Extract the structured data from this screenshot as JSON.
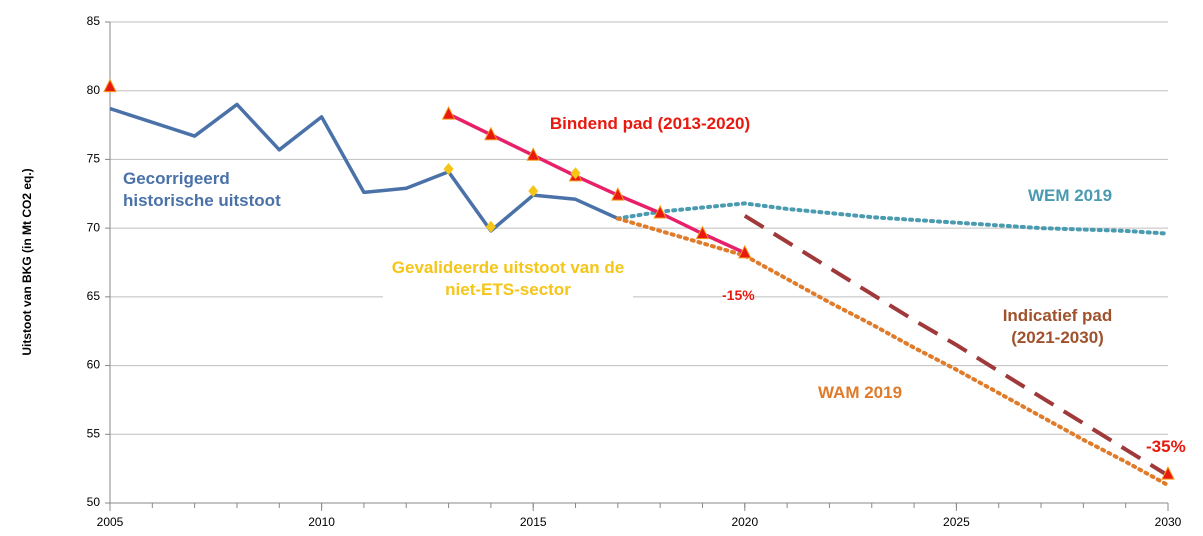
{
  "chart_data": {
    "type": "line",
    "y_label": "Uitstoot van BKG (in Mt CO2 eq.)",
    "x": [
      2005,
      2006,
      2007,
      2008,
      2009,
      2010,
      2011,
      2012,
      2013,
      2014,
      2015,
      2016,
      2017,
      2018,
      2019,
      2020,
      2021,
      2022,
      2023,
      2024,
      2025,
      2026,
      2027,
      2028,
      2029,
      2030
    ],
    "xlim": [
      2005,
      2030
    ],
    "xticks": [
      2005,
      2010,
      2015,
      2020,
      2025,
      2030
    ],
    "ylim": [
      50,
      85
    ],
    "yticks": [
      50,
      55,
      60,
      65,
      70,
      75,
      80,
      85
    ],
    "grid": true,
    "series": [
      {
        "name": "Gecorrigeerd historische uitstoot",
        "color": "#4a72a8",
        "line": "solid",
        "marker": "none",
        "values": [
          78.7,
          77.7,
          76.7,
          79.0,
          75.7,
          78.1,
          72.6,
          72.9,
          74.1,
          69.8,
          72.4,
          72.1,
          70.7,
          null,
          null,
          null,
          null,
          null,
          null,
          null,
          null,
          null,
          null,
          null,
          null,
          null
        ]
      },
      {
        "name": "WEM 2019",
        "color": "#4a9bb0",
        "line": "dotted",
        "marker": "none",
        "values": [
          null,
          null,
          null,
          null,
          null,
          null,
          null,
          null,
          null,
          null,
          null,
          null,
          70.7,
          71.2,
          71.5,
          71.8,
          71.4,
          71.1,
          70.8,
          70.6,
          70.4,
          70.2,
          70.0,
          69.9,
          69.8,
          69.6
        ]
      },
      {
        "name": "WAM 2019",
        "color": "#e07b2a",
        "line": "dotted",
        "marker": "none",
        "values": [
          null,
          null,
          null,
          null,
          null,
          null,
          null,
          null,
          null,
          null,
          null,
          null,
          70.7,
          69.8,
          68.9,
          68.0,
          66.3,
          64.6,
          63.0,
          61.3,
          59.7,
          58.0,
          56.3,
          54.6,
          53.0,
          51.3
        ]
      },
      {
        "name": "Indicatief pad (2021-2030)",
        "color": "#a0393a",
        "line": "dashed",
        "marker": "none",
        "values": [
          null,
          null,
          null,
          null,
          null,
          null,
          null,
          null,
          null,
          null,
          null,
          null,
          null,
          null,
          null,
          70.9,
          69.0,
          67.1,
          65.2,
          63.3,
          61.5,
          59.6,
          57.7,
          55.8,
          53.9,
          52.0
        ]
      },
      {
        "name": "Bindend pad (2013-2020)",
        "color": "#e8206a",
        "line": "solid",
        "marker": "triangle",
        "values": [
          null,
          null,
          null,
          null,
          null,
          null,
          null,
          null,
          78.3,
          76.8,
          75.3,
          73.8,
          72.4,
          71.1,
          69.6,
          68.2,
          null,
          null,
          null,
          null,
          null,
          null,
          null,
          null,
          null,
          null
        ]
      },
      {
        "name": "Gevalideerde uitstoot van de niet-ETS-sector",
        "color": "#f5c518",
        "line": "none",
        "marker": "diamond",
        "values": [
          null,
          null,
          null,
          null,
          null,
          null,
          null,
          null,
          74.3,
          70.1,
          72.7,
          74.0,
          null,
          null,
          null,
          null,
          null,
          null,
          null,
          null,
          null,
          null,
          null,
          null,
          null,
          null
        ]
      },
      {
        "color": "#e8190f",
        "line": "none",
        "marker": "triangle",
        "values": [
          80.3,
          null,
          null,
          null,
          null,
          null,
          null,
          null,
          null,
          null,
          null,
          null,
          null,
          null,
          null,
          null,
          null,
          null,
          null,
          null,
          null,
          null,
          null,
          null,
          null,
          52.1
        ]
      }
    ],
    "annotations": [
      "-15%",
      "-35%"
    ]
  }
}
